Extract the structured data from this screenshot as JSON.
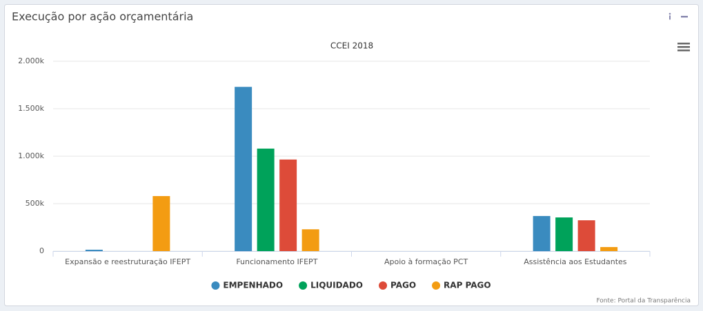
{
  "panel": {
    "title": "Execução por ação orçamentária",
    "source": "Fonte: Portal da Transparência"
  },
  "chart_data": {
    "type": "bar",
    "title": "CCEI 2018",
    "categories": [
      "Expansão e reestruturação IFEPT",
      "Funcionamento IFEPT",
      "Apoio à formação PCT",
      "Assistência aos Estudantes"
    ],
    "series": [
      {
        "name": "EMPENHADO",
        "color": "#3a8bbf",
        "values": [
          15000,
          1730000,
          0,
          370000
        ]
      },
      {
        "name": "LIQUIDADO",
        "color": "#00a25a",
        "values": [
          0,
          1080000,
          0,
          355000
        ]
      },
      {
        "name": "PAGO",
        "color": "#dd4b39",
        "values": [
          0,
          965000,
          0,
          325000
        ]
      },
      {
        "name": "RAP PAGO",
        "color": "#f39c12",
        "values": [
          580000,
          230000,
          0,
          43000
        ]
      }
    ],
    "ylim": [
      0,
      2000000
    ],
    "yticks": [
      0,
      {
        "value": 500000,
        "label": "500k"
      },
      {
        "value": 1000000,
        "label": "1.000k"
      },
      {
        "value": 1500000,
        "label": "1.500k"
      },
      {
        "value": 2000000,
        "label": "2.000k"
      }
    ],
    "grid": true,
    "legend": "bottom"
  }
}
